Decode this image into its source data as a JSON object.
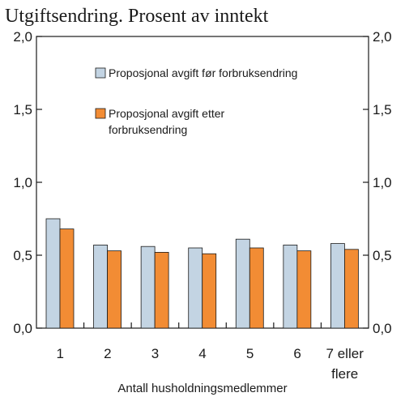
{
  "chart_data": {
    "type": "bar",
    "title": "Utgiftsendring. Prosent av inntekt",
    "xlabel": "Antall husholdningsmedlemmer",
    "ylabel": "",
    "ylim": [
      0,
      2.0
    ],
    "yticks": [
      "0,0",
      "0,5",
      "1,0",
      "1,5",
      "2,0"
    ],
    "categories": [
      [
        "1"
      ],
      [
        "2"
      ],
      [
        "3"
      ],
      [
        "4"
      ],
      [
        "5"
      ],
      [
        "6"
      ],
      [
        "7 eller",
        "flere"
      ]
    ],
    "series": [
      {
        "name": "Proposjonal avgift før forbruksendring",
        "color": "#c3d4e3",
        "values": [
          0.75,
          0.57,
          0.56,
          0.55,
          0.61,
          0.57,
          0.58
        ]
      },
      {
        "name": "Proposjonal avgift etter forbruksendring",
        "name_lines": [
          "Proposjonal avgift etter",
          "forbruksendring"
        ],
        "color": "#f28c34",
        "values": [
          0.68,
          0.53,
          0.52,
          0.51,
          0.55,
          0.53,
          0.54
        ]
      }
    ],
    "grid": false,
    "legend_position": "top-center",
    "right_axis": true
  }
}
